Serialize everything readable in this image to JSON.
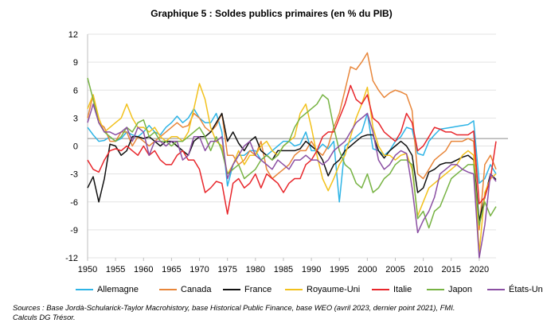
{
  "chart_data": {
    "type": "line",
    "title": "Graphique 5 : Soldes publics primaires (en % du PIB)",
    "xlabel": "",
    "ylabel": "",
    "xlim": [
      1950,
      2023
    ],
    "ylim": [
      -12,
      12
    ],
    "x_ticks": [
      "1950",
      "1955",
      "1960",
      "1965",
      "1970",
      "1975",
      "1980",
      "1985",
      "1990",
      "1995",
      "2000",
      "2005",
      "2010",
      "2015",
      "2020"
    ],
    "y_ticks": [
      "12",
      "9",
      "6",
      "3",
      "0",
      "-3",
      "-6",
      "-9",
      "-12"
    ],
    "reference_line": 0.8,
    "x": [
      1950,
      1951,
      1952,
      1953,
      1954,
      1955,
      1956,
      1957,
      1958,
      1959,
      1960,
      1961,
      1962,
      1963,
      1964,
      1965,
      1966,
      1967,
      1968,
      1969,
      1970,
      1971,
      1972,
      1973,
      1974,
      1975,
      1976,
      1977,
      1978,
      1979,
      1980,
      1981,
      1982,
      1983,
      1984,
      1985,
      1986,
      1987,
      1988,
      1989,
      1990,
      1991,
      1992,
      1993,
      1994,
      1995,
      1996,
      1997,
      1998,
      1999,
      2000,
      2001,
      2002,
      2003,
      2004,
      2005,
      2006,
      2007,
      2008,
      2009,
      2010,
      2011,
      2012,
      2013,
      2014,
      2015,
      2016,
      2017,
      2018,
      2019,
      2020,
      2021,
      2022,
      2023
    ],
    "series": [
      {
        "name": "Allemagne",
        "color": "#2eb4e6",
        "values": [
          2.0,
          1.2,
          0.5,
          0.6,
          1.0,
          0.5,
          0.8,
          1.5,
          1.2,
          1.0,
          1.5,
          2.2,
          1.5,
          1.2,
          2.0,
          2.5,
          3.2,
          2.5,
          3.0,
          4.0,
          3.0,
          2.5,
          2.5,
          3.5,
          1.5,
          -4.3,
          -2.0,
          -1.0,
          -1.0,
          -0.5,
          -0.5,
          -1.5,
          -1.0,
          -0.5,
          0.0,
          0.5,
          0.5,
          0.0,
          0.2,
          1.5,
          -0.5,
          -0.5,
          0.2,
          -0.3,
          0.5,
          -6.0,
          0.0,
          0.5,
          1.0,
          1.5,
          3.5,
          -0.3,
          -0.5,
          -1.0,
          -0.5,
          0.5,
          1.0,
          2.0,
          1.8,
          -0.8,
          -1.0,
          0.5,
          1.2,
          1.8,
          1.9,
          2.0,
          2.1,
          2.2,
          2.3,
          2.7,
          -4.0,
          -3.5,
          -2.0,
          -3.0
        ]
      },
      {
        "name": "Canada",
        "color": "#e8863a",
        "values": [
          3.0,
          5.5,
          2.5,
          2.0,
          0.5,
          0.5,
          1.5,
          1.5,
          0.0,
          1.0,
          0.5,
          0.0,
          0.5,
          1.0,
          1.5,
          2.0,
          2.5,
          2.0,
          2.2,
          3.5,
          3.0,
          2.0,
          1.5,
          2.2,
          3.5,
          -1.0,
          -1.0,
          -2.0,
          -1.5,
          -0.5,
          -1.0,
          0.5,
          -2.5,
          -3.5,
          -3.0,
          -2.5,
          -2.0,
          -1.0,
          -0.5,
          -0.5,
          0.5,
          -0.5,
          -1.0,
          0.0,
          2.0,
          3.5,
          6.0,
          8.5,
          8.2,
          9.0,
          10.0,
          7.0,
          6.0,
          5.2,
          5.7,
          6.0,
          5.8,
          5.5,
          3.8,
          -3.0,
          -3.5,
          -2.5,
          -1.5,
          -1.0,
          -0.5,
          0.5,
          0.5,
          0.5,
          0.8,
          0.5,
          -9.0,
          -2.0,
          -1.0,
          -2.5
        ]
      },
      {
        "name": "France",
        "color": "#111111",
        "values": [
          -4.5,
          -3.3,
          -6.0,
          -3.5,
          0.2,
          0.0,
          -1.0,
          -0.5,
          1.0,
          1.0,
          0.8,
          1.0,
          0.5,
          0.0,
          0.5,
          0.5,
          0.0,
          -0.5,
          -1.0,
          0.5,
          1.0,
          1.0,
          1.5,
          2.5,
          3.5,
          0.5,
          1.5,
          0.3,
          -0.5,
          0.5,
          1.0,
          -0.5,
          -1.0,
          -1.5,
          -0.5,
          -0.5,
          -0.5,
          -0.5,
          -0.3,
          0.5,
          0.0,
          -0.5,
          -1.5,
          -3.2,
          -2.0,
          -1.5,
          -0.5,
          0.0,
          0.5,
          1.0,
          1.2,
          1.2,
          -0.5,
          -1.3,
          -0.5,
          0.0,
          0.5,
          0.0,
          -1.0,
          -5.0,
          -4.5,
          -2.8,
          -2.5,
          -2.0,
          -1.8,
          -1.8,
          -1.5,
          -1.2,
          -1.0,
          -1.5,
          -8.0,
          -5.5,
          -3.0,
          -3.6
        ]
      },
      {
        "name": "Royaume-Uni",
        "color": "#f2c11c",
        "values": [
          4.0,
          5.5,
          3.0,
          1.5,
          2.0,
          2.5,
          3.0,
          4.5,
          3.0,
          2.0,
          2.0,
          1.5,
          2.0,
          1.0,
          0.5,
          1.0,
          1.0,
          0.5,
          1.5,
          4.0,
          6.7,
          5.0,
          2.0,
          0.5,
          0.0,
          -3.0,
          -2.0,
          -0.5,
          -2.0,
          -1.0,
          -1.0,
          0.0,
          0.5,
          -0.5,
          -1.0,
          0.0,
          0.5,
          1.0,
          3.5,
          4.5,
          2.0,
          -1.0,
          -3.5,
          -4.8,
          -3.5,
          -2.0,
          -1.0,
          1.0,
          3.0,
          4.5,
          6.3,
          2.0,
          0.0,
          -1.0,
          -1.0,
          -1.5,
          -1.0,
          -0.8,
          -2.5,
          -7.5,
          -6.0,
          -4.5,
          -4.0,
          -3.5,
          -3.0,
          -2.5,
          -2.0,
          -1.0,
          -0.5,
          -1.0,
          -11.5,
          -5.0,
          -3.5,
          -3.0
        ]
      },
      {
        "name": "Italie",
        "color": "#e8262b",
        "values": [
          -1.5,
          -2.5,
          -2.8,
          -1.5,
          -0.5,
          -0.3,
          -0.5,
          0.0,
          -0.5,
          -1.0,
          0.0,
          -1.0,
          -0.5,
          -1.5,
          -2.0,
          -2.0,
          -1.0,
          -0.5,
          -1.5,
          -1.5,
          -2.5,
          -5.0,
          -4.5,
          -3.8,
          -4.0,
          -7.3,
          -4.0,
          -3.5,
          -4.5,
          -4.0,
          -3.0,
          -4.5,
          -3.0,
          -3.5,
          -4.0,
          -5.0,
          -4.0,
          -3.5,
          -3.5,
          -2.0,
          -1.5,
          -0.5,
          1.0,
          1.5,
          1.5,
          3.0,
          4.5,
          6.5,
          5.0,
          4.5,
          5.5,
          3.0,
          2.5,
          1.5,
          1.0,
          0.5,
          1.5,
          3.5,
          2.5,
          -0.5,
          0.0,
          1.0,
          2.0,
          1.8,
          1.5,
          1.5,
          1.2,
          1.2,
          1.2,
          1.6,
          -6.2,
          -5.5,
          -3.5,
          0.5
        ]
      },
      {
        "name": "Japon",
        "color": "#77b343",
        "values": [
          7.3,
          5.0,
          2.5,
          1.5,
          1.0,
          0.5,
          1.0,
          2.0,
          1.5,
          2.5,
          2.8,
          1.0,
          1.5,
          0.5,
          0.5,
          0.0,
          0.5,
          0.5,
          1.0,
          1.5,
          2.0,
          1.0,
          -0.5,
          1.0,
          -0.5,
          -3.0,
          -2.5,
          -2.0,
          -3.5,
          -3.0,
          -2.5,
          -1.5,
          -1.0,
          -1.5,
          -1.0,
          0.0,
          0.5,
          2.0,
          3.0,
          3.5,
          4.0,
          4.5,
          5.5,
          5.0,
          2.0,
          -0.5,
          -2.0,
          -2.5,
          -4.0,
          -4.5,
          -3.0,
          -5.0,
          -4.5,
          -3.5,
          -3.0,
          -2.0,
          -1.5,
          -1.5,
          -2.0,
          -7.8,
          -7.0,
          -8.8,
          -7.0,
          -6.5,
          -5.0,
          -3.5,
          -3.0,
          -2.5,
          -2.0,
          -2.0,
          -8.5,
          -6.0,
          -7.5,
          -6.5
        ]
      },
      {
        "name": "États-Unis",
        "color": "#8b4fa3",
        "values": [
          2.5,
          4.5,
          2.5,
          1.5,
          1.5,
          1.2,
          1.5,
          2.0,
          0.5,
          2.0,
          1.5,
          -1.0,
          0.5,
          0.5,
          0.0,
          0.5,
          0.5,
          -1.5,
          -1.0,
          1.0,
          1.0,
          -0.5,
          0.5,
          0.5,
          1.0,
          -3.5,
          -2.0,
          -1.0,
          0.0,
          0.5,
          -1.0,
          -1.5,
          -2.0,
          -2.5,
          -1.5,
          -2.0,
          -2.5,
          -1.5,
          -1.5,
          -1.0,
          -1.5,
          -1.5,
          -2.0,
          -1.5,
          -0.5,
          0.0,
          0.5,
          1.5,
          2.5,
          3.0,
          3.5,
          1.5,
          -1.5,
          -2.5,
          -2.0,
          -1.0,
          -0.5,
          -0.8,
          -4.5,
          -9.3,
          -8.0,
          -7.0,
          -5.5,
          -3.0,
          -2.5,
          -2.0,
          -2.0,
          -2.5,
          -2.8,
          -3.0,
          -12.0,
          -8.5,
          -3.0,
          -3.8
        ]
      }
    ]
  },
  "sources_line1": "Sources : Base Jordà-Schularick-Taylor Macrohistory, base Historical Public Finance, base WEO (avril 2023, dernier point 2021), FMI.",
  "sources_line2": "Calculs DG Trésor."
}
